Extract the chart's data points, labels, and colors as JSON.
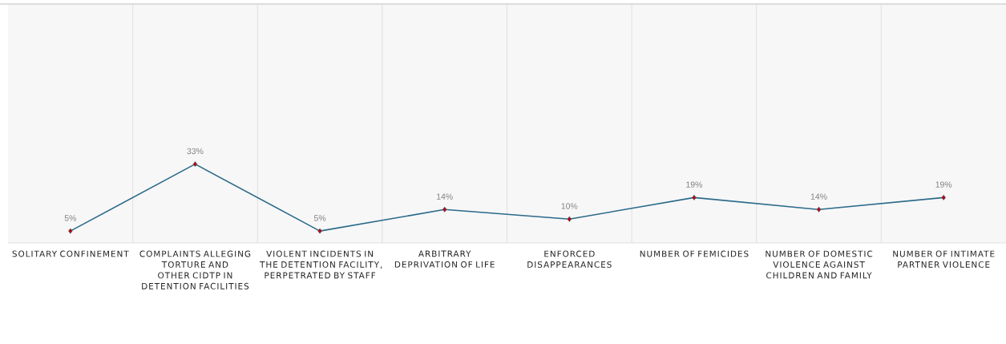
{
  "chart_data": {
    "type": "line",
    "categories": [
      "SOLITARY CONFINEMENT",
      "COMPLAINTS ALLEGING TORTURE AND OTHER CIDTP IN DETENTION FACILITIES",
      "VIOLENT INCIDENTS IN THE DETENTION FACILITY, PERPETRATED BY STAFF",
      "ARBITRARY DEPRIVATION OF LIFE",
      "ENFORCED DISAPPEARANCES",
      "NUMBER OF FEMICIDES",
      "NUMBER OF DOMESTIC VIOLENCE AGAINST CHILDREN AND FAMILY",
      "NUMBER OF INTIMATE PARTNER VIOLENCE"
    ],
    "series": [
      {
        "color": "#2b6a8a",
        "values": [
          5,
          33,
          5,
          14,
          10,
          19,
          14,
          19
        ],
        "value_labels": [
          "5%",
          "33%",
          "5%",
          "14%",
          "10%",
          "19%",
          "14%",
          "19%"
        ]
      }
    ],
    "ylim": [
      0,
      100
    ],
    "grid": "x",
    "marker": "diamond",
    "line_style": "solid"
  }
}
